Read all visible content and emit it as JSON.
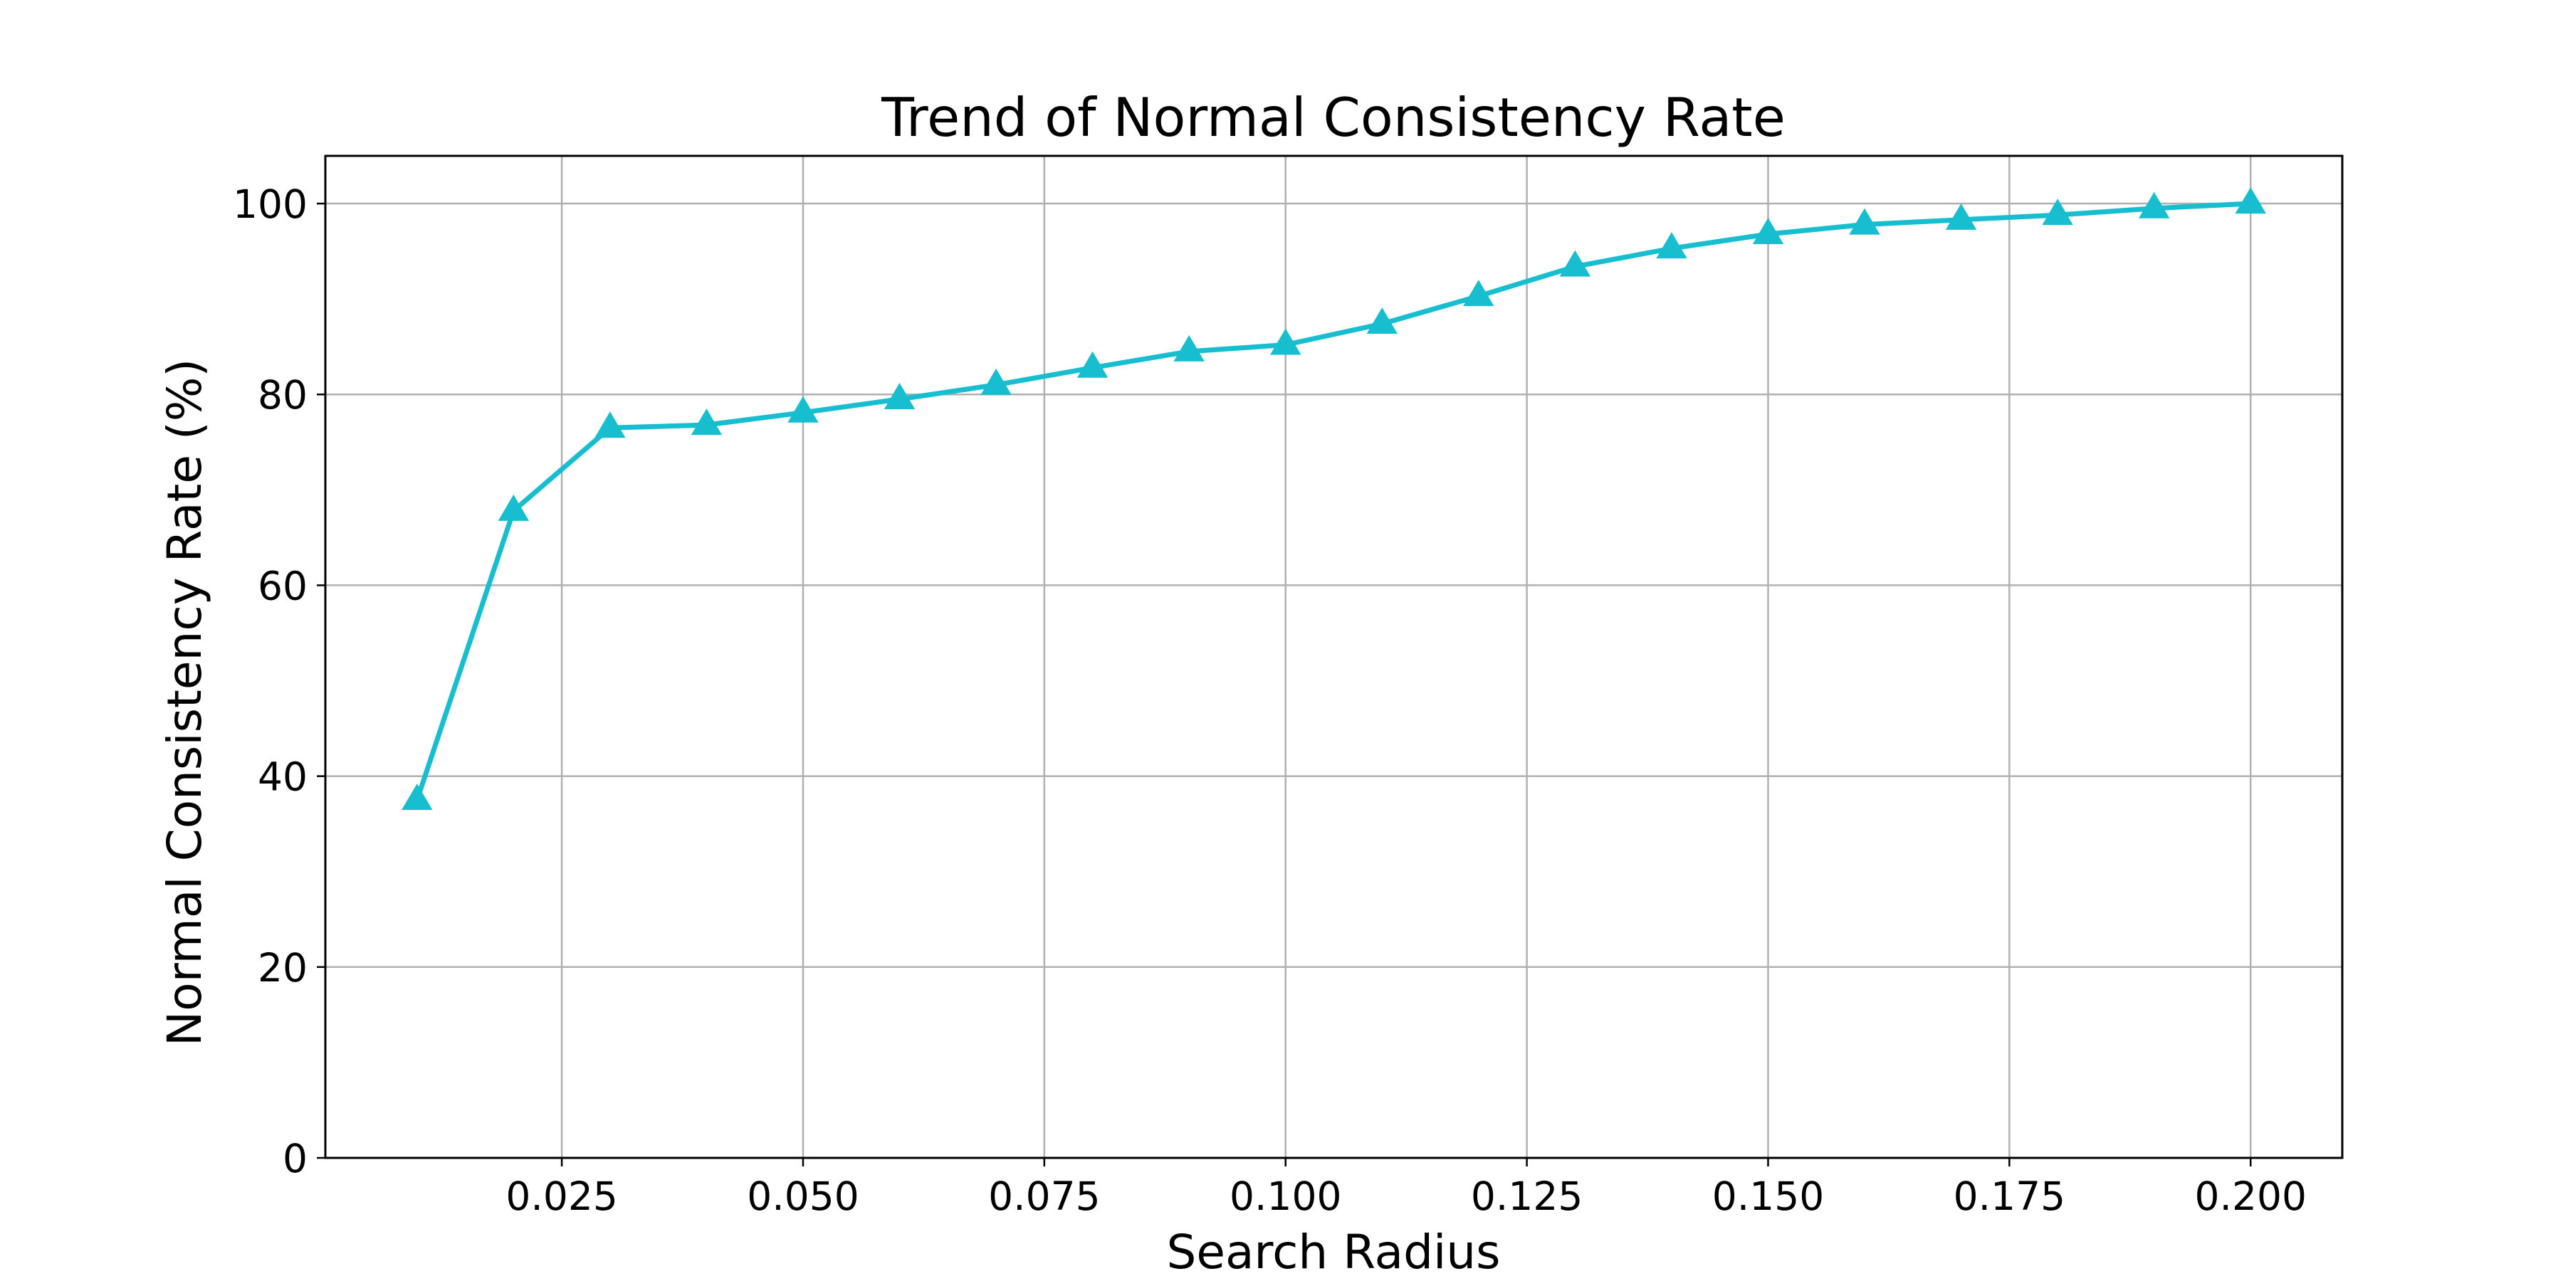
{
  "chart_data": {
    "type": "line",
    "title": "Trend of Normal Consistency Rate",
    "xlabel": "Search Radius",
    "ylabel": "Normal Consistency Rate (%)",
    "xlim": [
      0.0005,
      0.2095
    ],
    "ylim": [
      0,
      105
    ],
    "xticks": [
      0.025,
      0.05,
      0.075,
      0.1,
      0.125,
      0.15,
      0.175,
      0.2
    ],
    "xtick_labels": [
      "0.025",
      "0.050",
      "0.075",
      "0.100",
      "0.125",
      "0.150",
      "0.175",
      "0.200"
    ],
    "yticks": [
      0,
      20,
      40,
      60,
      80,
      100
    ],
    "ytick_labels": [
      "0",
      "20",
      "40",
      "60",
      "80",
      "100"
    ],
    "grid": true,
    "legend": "none",
    "marker": "triangle",
    "color": "#17BECF",
    "series": [
      {
        "x": [
          0.01,
          0.02,
          0.03,
          0.04,
          0.05,
          0.06,
          0.07,
          0.08,
          0.09,
          0.1,
          0.11,
          0.12,
          0.13,
          0.14,
          0.15,
          0.16,
          0.17,
          0.18,
          0.19,
          0.2
        ],
        "y": [
          37.5,
          67.8,
          76.5,
          76.8,
          78.1,
          79.5,
          81.0,
          82.8,
          84.5,
          85.2,
          87.4,
          90.3,
          93.4,
          95.3,
          96.8,
          97.8,
          98.3,
          98.8,
          99.5,
          100.0
        ]
      }
    ]
  }
}
